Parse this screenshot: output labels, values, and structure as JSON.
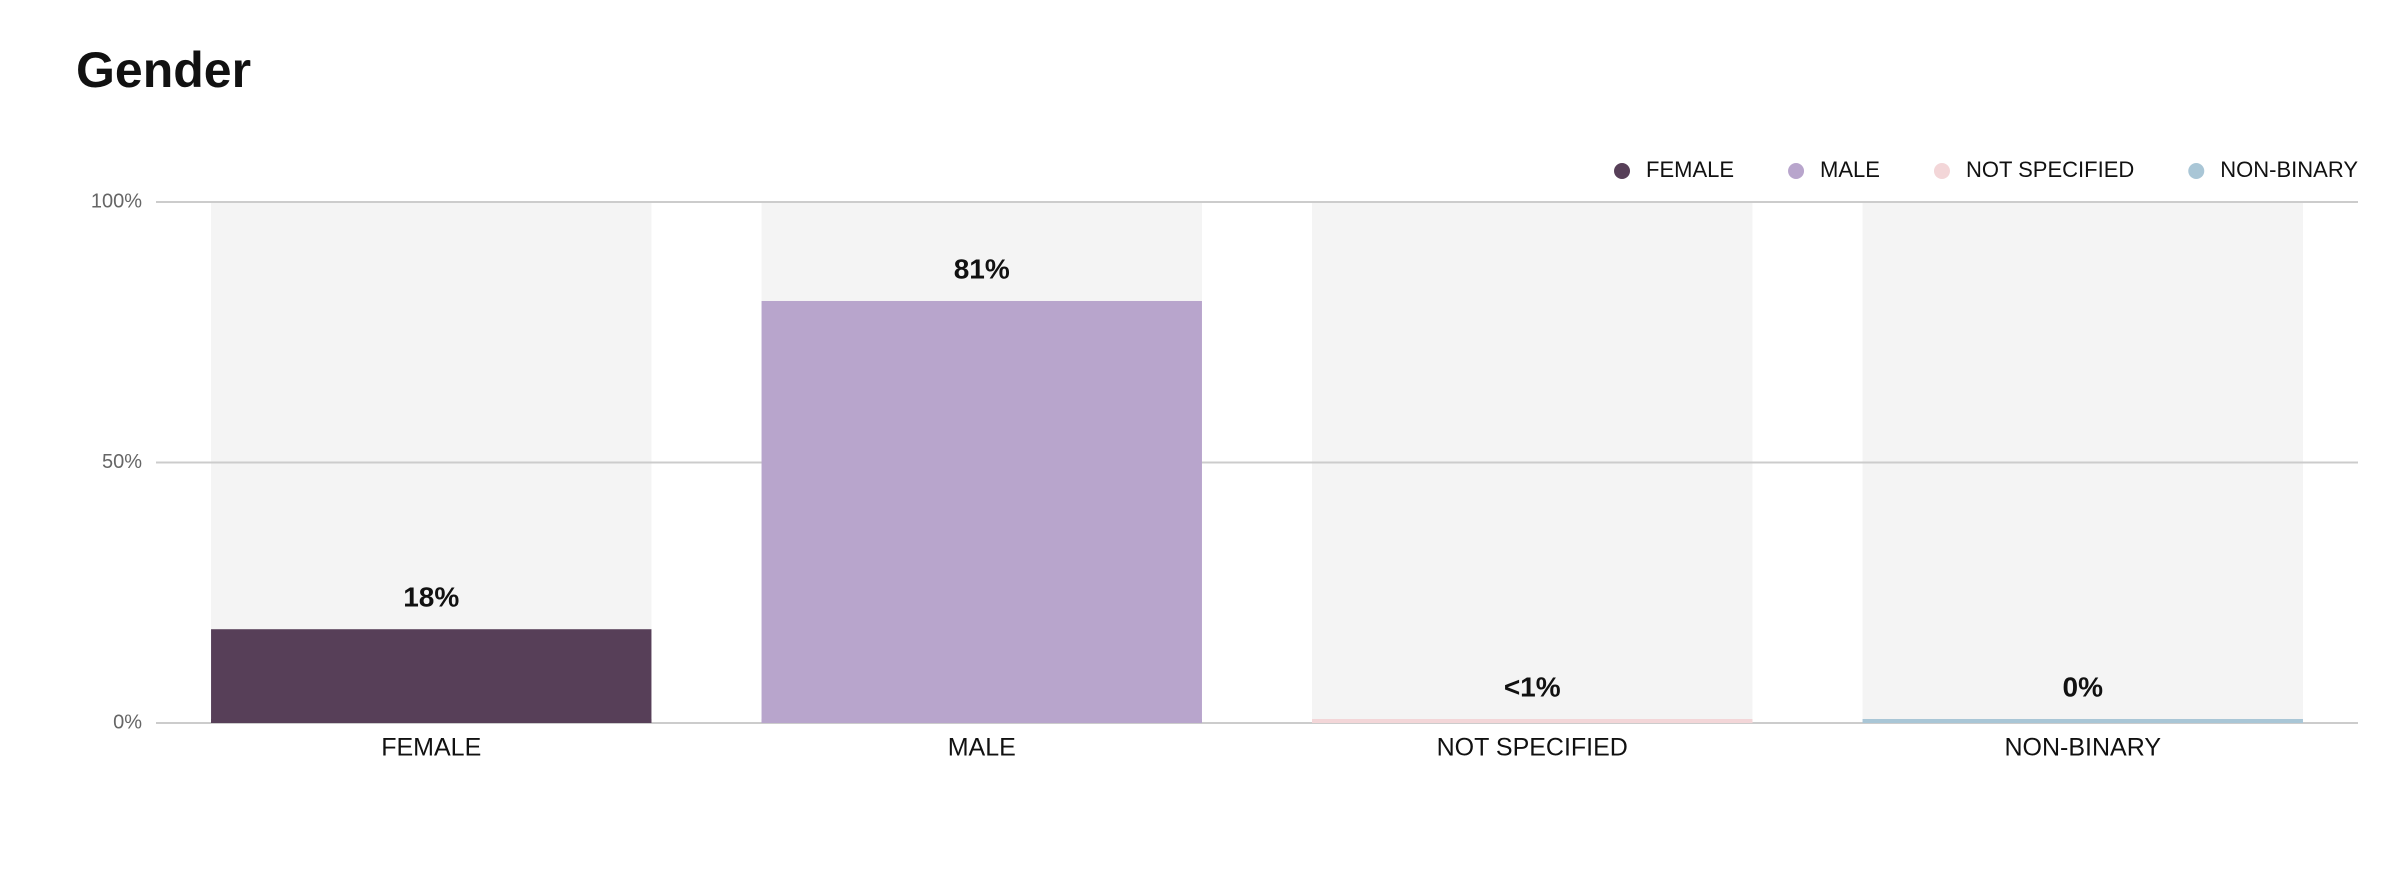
{
  "chart_data": {
    "type": "bar",
    "title": "Gender",
    "categories": [
      "FEMALE",
      "MALE",
      "NOT SPECIFIED",
      "NON-BINARY"
    ],
    "values": [
      18,
      81,
      0.5,
      0
    ],
    "value_labels": [
      "18%",
      "81%",
      "<1%",
      "0%"
    ],
    "colors": [
      "#573f58",
      "#b8a5cc",
      "#f3d6d8",
      "#a9c6d6"
    ],
    "ylim": [
      0,
      100
    ],
    "yticks": [
      {
        "value": 0,
        "label": "0%"
      },
      {
        "value": 50,
        "label": "50%"
      },
      {
        "value": 100,
        "label": "100%"
      }
    ],
    "grid": true,
    "legend": "top-right"
  }
}
